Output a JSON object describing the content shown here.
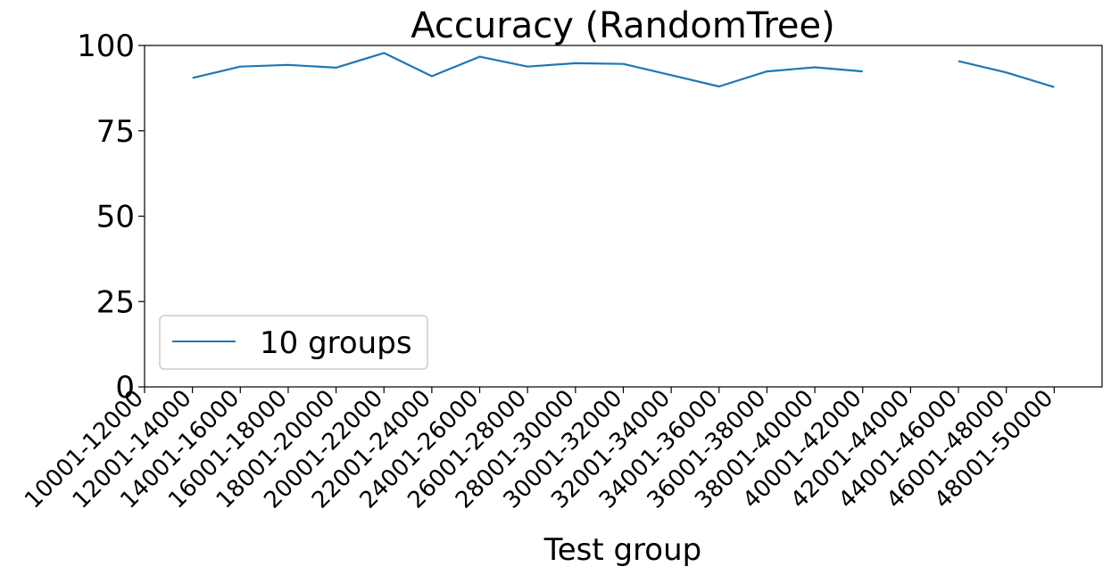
{
  "chart_data": {
    "type": "line",
    "title": "Accuracy (RandomTree)",
    "xlabel": "Test group",
    "ylabel": "",
    "ylim": [
      0,
      100
    ],
    "yticks": [
      0,
      25,
      50,
      75,
      100
    ],
    "grid": false,
    "legend_position": "lower-left",
    "categories": [
      "10001-12000",
      "12001-14000",
      "14001-16000",
      "16001-18000",
      "18001-20000",
      "20001-22000",
      "22001-24000",
      "24001-26000",
      "26001-28000",
      "28001-30000",
      "30001-32000",
      "32001-34000",
      "34001-36000",
      "36001-38000",
      "38001-40000",
      "40001-42000",
      "42001-44000",
      "44001-46000",
      "46001-48000",
      "48001-50000"
    ],
    "series": [
      {
        "name": "10 groups",
        "color": "#1f77b4",
        "values": [
          null,
          90.5,
          93.8,
          94.3,
          93.5,
          97.8,
          91.0,
          96.7,
          93.8,
          94.8,
          94.6,
          91.3,
          88.0,
          92.4,
          93.6,
          92.4,
          null,
          95.4,
          92.1,
          87.8
        ]
      }
    ]
  }
}
